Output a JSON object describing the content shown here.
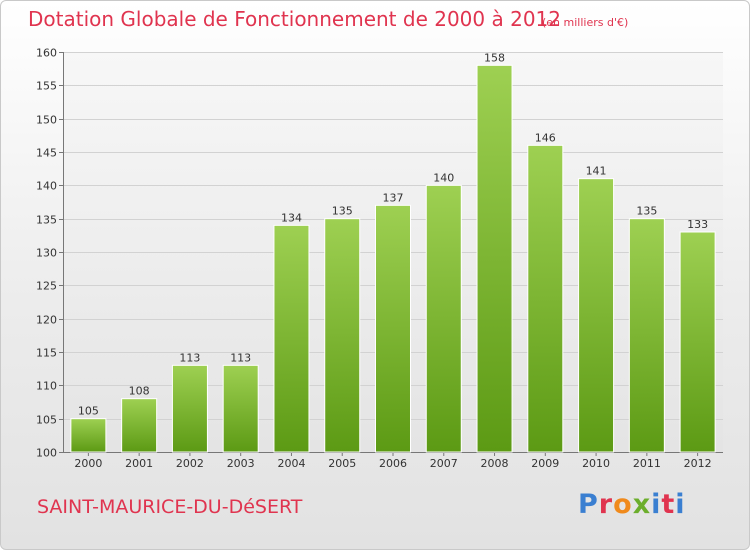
{
  "header": {
    "title": "Dotation Globale de Fonctionnement de 2000 à 2012",
    "subtitle": "(en milliers d'€)"
  },
  "footer": {
    "commune": "SAINT-MAURICE-DU-DéSERT",
    "logo_text": "Proxiti",
    "logo_colors": [
      "#3a7fd1",
      "#e0344f",
      "#f08a1c",
      "#6cae2c",
      "#3a7fd1",
      "#e0344f",
      "#3a7fd1"
    ]
  },
  "chart_data": {
    "type": "bar",
    "title": "Dotation Globale de Fonctionnement de 2000 à 2012",
    "subtitle": "(en milliers d'€)",
    "categories": [
      "2000",
      "2001",
      "2002",
      "2003",
      "2004",
      "2005",
      "2006",
      "2007",
      "2008",
      "2009",
      "2010",
      "2011",
      "2012"
    ],
    "values": [
      105,
      108,
      113,
      113,
      134,
      135,
      137,
      140,
      158,
      146,
      141,
      135,
      133
    ],
    "ylim": [
      100,
      160
    ],
    "yticks": [
      100,
      105,
      110,
      115,
      120,
      125,
      130,
      135,
      140,
      145,
      150,
      155,
      160
    ],
    "grid": true,
    "bar_color_top": "#9ed052",
    "bar_color_bottom": "#5c9a14",
    "data_labels": true
  }
}
